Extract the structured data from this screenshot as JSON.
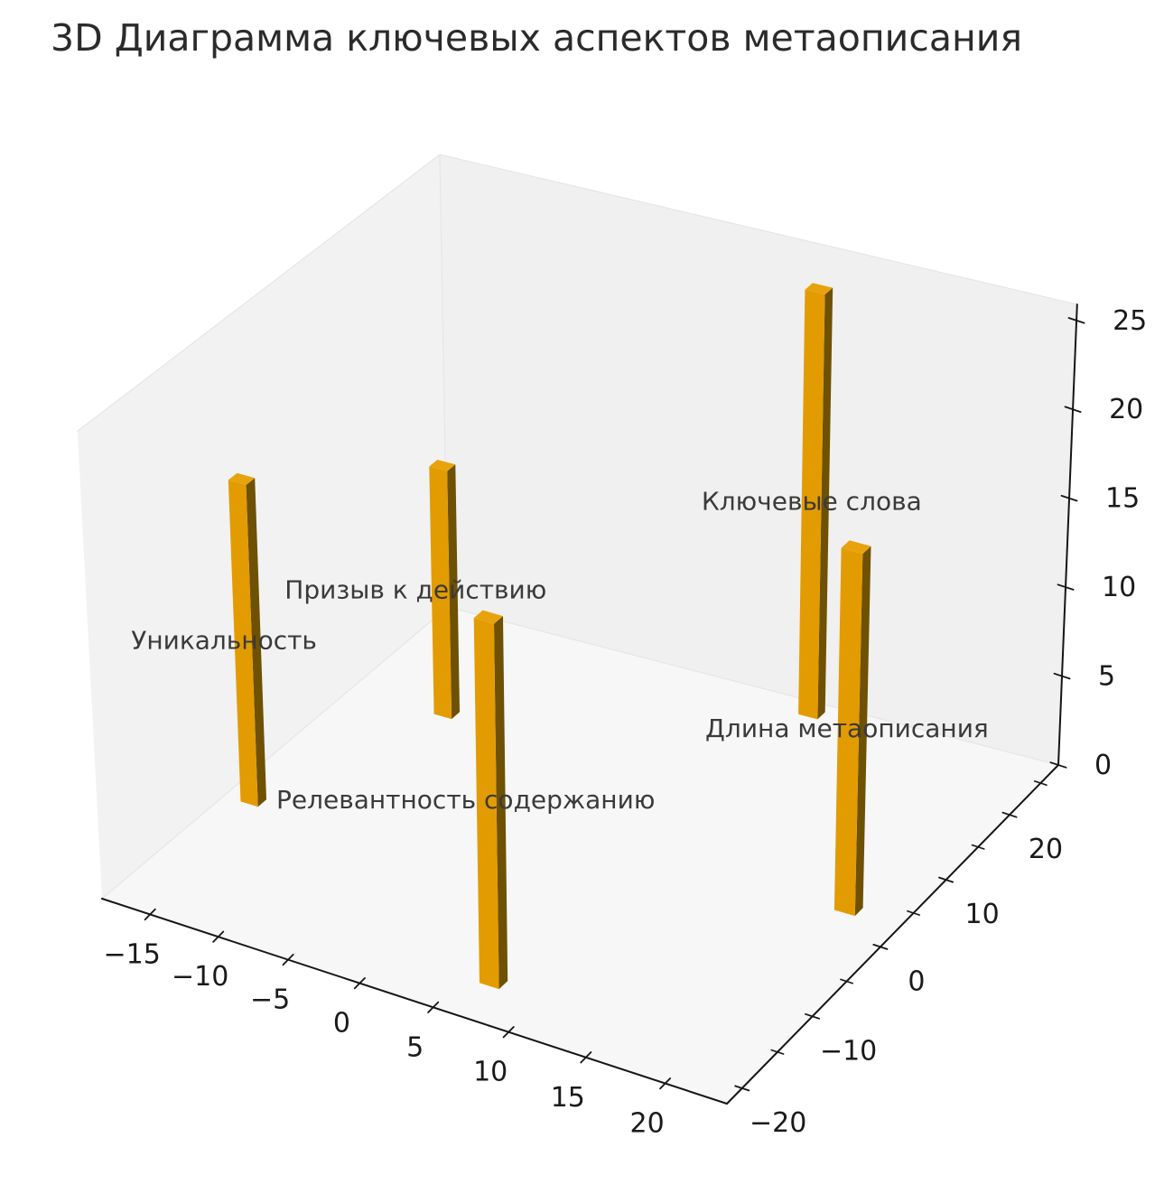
{
  "title": "3D Диаграмма ключевых аспектов метаописания",
  "chart_data": {
    "type": "bar",
    "subtype": "bar3d",
    "title": "3D Диаграмма ключевых аспектов метаописания",
    "grid": false,
    "legend_position": "none",
    "bars": [
      {
        "label": "Ключевые слова",
        "x": 7.7,
        "y": 25.7,
        "z": 24
      },
      {
        "label": "Призыв к действию",
        "x": -12.2,
        "y": 12.8,
        "z": 14
      },
      {
        "label": "Длина метаописания",
        "x": 19.8,
        "y": 2.7,
        "z": 20
      },
      {
        "label": "Уникальность",
        "x": -17.3,
        "y": -5.4,
        "z": 18
      },
      {
        "label": "Релевантность содержанию",
        "x": 6.0,
        "y": -17.8,
        "z": 20
      }
    ],
    "bar_size": {
      "dx": 1.3,
      "dy": 1.2
    },
    "axes": {
      "xlim": [
        -18.6,
        23.8
      ],
      "ylim": [
        -22.1,
        27.9
      ],
      "zlim": [
        0,
        25.9
      ],
      "xticks": [
        -15,
        -10,
        -5,
        0,
        5,
        10,
        15,
        20
      ],
      "yticks": [
        -20,
        -10,
        0,
        10,
        20
      ],
      "yticks_minor": [
        -15,
        -5,
        5,
        15,
        25
      ],
      "zticks": [
        0,
        5,
        10,
        15,
        20,
        25
      ]
    },
    "colors": {
      "bar_front": "#e39b02",
      "bar_side": "#6e5103",
      "bar_top": "#e8a30c",
      "pane_left": "#f2f2f2",
      "pane_right": "#f0f0f0",
      "pane_floor": "#f7f7f7",
      "pane_edge": "#e6e6e6",
      "axis_line": "#151515",
      "tick_label": "#1a1a1a",
      "bar_label": "#3a3a3a",
      "title_color": "#2b2b2b",
      "background": "#ffffff"
    }
  }
}
